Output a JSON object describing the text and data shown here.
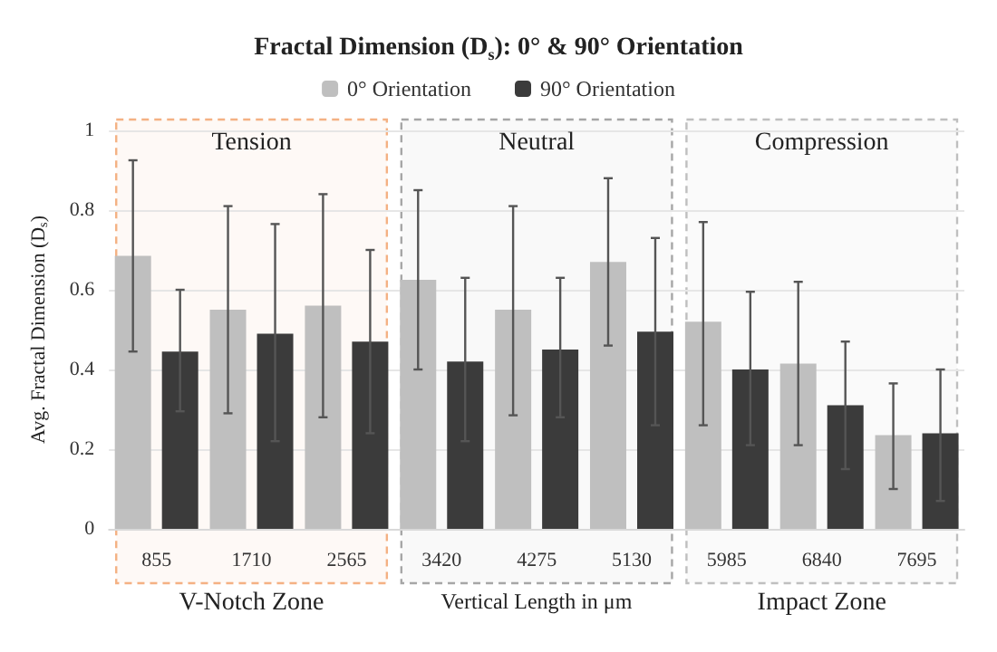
{
  "chart_data": {
    "type": "bar",
    "title": "Fractal Dimension (D$_{s}$): 0° & 90° Orientation",
    "xlabel": "Vertical Length in μm",
    "ylabel": "Avg. Fractal Dimension (D$_{s}$)",
    "categories": [
      "855",
      "1710",
      "2565",
      "3420",
      "4275",
      "5130",
      "5985",
      "6840",
      "7695"
    ],
    "series": [
      {
        "name": "0° Orientation",
        "color": "#bfbfbf",
        "values": [
          0.685,
          0.55,
          0.56,
          0.625,
          0.55,
          0.67,
          0.52,
          0.415,
          0.235
        ],
        "errors": [
          [
            0.445,
            0.925
          ],
          [
            0.29,
            0.81
          ],
          [
            0.28,
            0.84
          ],
          [
            0.4,
            0.85
          ],
          [
            0.285,
            0.81
          ],
          [
            0.46,
            0.88
          ],
          [
            0.26,
            0.77
          ],
          [
            0.21,
            0.62
          ],
          [
            0.1,
            0.365
          ]
        ]
      },
      {
        "name": "90° Orientation",
        "color": "#3b3b3b",
        "values": [
          0.445,
          0.49,
          0.47,
          0.42,
          0.45,
          0.495,
          0.4,
          0.31,
          0.24
        ],
        "errors": [
          [
            0.295,
            0.6
          ],
          [
            0.22,
            0.765
          ],
          [
            0.24,
            0.7
          ],
          [
            0.22,
            0.63
          ],
          [
            0.28,
            0.63
          ],
          [
            0.26,
            0.73
          ],
          [
            0.21,
            0.595
          ],
          [
            0.15,
            0.47
          ],
          [
            0.07,
            0.4
          ]
        ]
      }
    ],
    "ylim": [
      0,
      1
    ],
    "yticks": [
      0,
      0.2,
      0.4,
      0.6,
      0.8,
      1
    ],
    "grid": "y",
    "legend": "top",
    "bands": [
      {
        "axis": "x",
        "from": "855",
        "to": "2565",
        "label": "Tension",
        "color": "#f4b183"
      },
      {
        "axis": "x",
        "from": "3420",
        "to": "5130",
        "label": "Neutral",
        "color": "#a6a6a6"
      },
      {
        "axis": "x",
        "from": "5985",
        "to": "7695",
        "label": "Compression",
        "color": "#bfbfbf"
      }
    ],
    "annotations": [
      "V-Notch Zone",
      "Impact Zone"
    ]
  }
}
